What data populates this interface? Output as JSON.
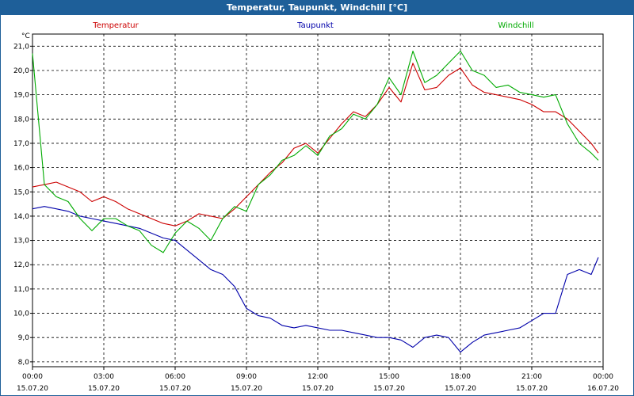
{
  "window": {
    "title": "Temperatur, Taupunkt, Windchill [°C]"
  },
  "chart_data": {
    "type": "line",
    "title": "Temperatur, Taupunkt, Windchill [°C]",
    "ylabel": "°C",
    "xlabel": "",
    "xlim": [
      0,
      24
    ],
    "ylim": [
      7.8,
      21.5
    ],
    "grid": true,
    "legend_position": "top",
    "y_ticks": [
      8.0,
      9.0,
      10.0,
      11.0,
      12.0,
      13.0,
      14.0,
      15.0,
      16.0,
      17.0,
      18.0,
      19.0,
      20.0,
      21.0
    ],
    "y_tick_labels": [
      "8,0",
      "9,0",
      "10,0",
      "11,0",
      "12,0",
      "13,0",
      "14,0",
      "15,0",
      "16,0",
      "17,0",
      "18,0",
      "19,0",
      "20,0",
      "21,0"
    ],
    "x_ticks": [
      {
        "x": 0,
        "time": "00:00",
        "date": "15.07.20"
      },
      {
        "x": 3,
        "time": "03:00",
        "date": "15.07.20"
      },
      {
        "x": 6,
        "time": "06:00",
        "date": "15.07.20"
      },
      {
        "x": 9,
        "time": "09:00",
        "date": "15.07.20"
      },
      {
        "x": 12,
        "time": "12:00",
        "date": "15.07.20"
      },
      {
        "x": 15,
        "time": "15:00",
        "date": "15.07.20"
      },
      {
        "x": 18,
        "time": "18:00",
        "date": "15.07.20"
      },
      {
        "x": 21,
        "time": "21:00",
        "date": "15.07.20"
      },
      {
        "x": 24,
        "time": "00:00",
        "date": "16.07.20"
      }
    ],
    "series": [
      {
        "name": "Temperatur",
        "color": "#cc0000",
        "x": [
          0,
          0.5,
          1,
          1.5,
          2,
          2.5,
          3,
          3.5,
          4,
          4.5,
          5,
          5.5,
          6,
          6.5,
          7,
          7.5,
          8,
          8.5,
          9,
          9.5,
          10,
          10.5,
          11,
          11.5,
          12,
          12.5,
          13,
          13.5,
          14,
          14.5,
          15,
          15.5,
          16,
          16.5,
          17,
          17.5,
          18,
          18.5,
          19,
          19.5,
          20,
          20.5,
          21,
          21.5,
          22,
          22.5,
          23,
          23.5,
          23.8
        ],
        "values": [
          15.2,
          15.3,
          15.4,
          15.2,
          15.0,
          14.6,
          14.8,
          14.6,
          14.3,
          14.1,
          13.9,
          13.7,
          13.6,
          13.8,
          14.1,
          14.0,
          13.9,
          14.3,
          14.8,
          15.3,
          15.8,
          16.2,
          16.8,
          17.0,
          16.6,
          17.2,
          17.8,
          18.3,
          18.1,
          18.6,
          19.3,
          18.7,
          20.3,
          19.2,
          19.3,
          19.8,
          20.1,
          19.4,
          19.1,
          19.0,
          18.9,
          18.8,
          18.6,
          18.3,
          18.3,
          18.0,
          17.5,
          17.0,
          16.6
        ]
      },
      {
        "name": "Taupunkt",
        "color": "#0000aa",
        "x": [
          0,
          0.5,
          1,
          1.5,
          2,
          2.5,
          3,
          3.5,
          4,
          4.5,
          5,
          5.5,
          6,
          6.5,
          7,
          7.5,
          8,
          8.5,
          9,
          9.5,
          10,
          10.5,
          11,
          11.5,
          12,
          12.5,
          13,
          13.5,
          14,
          14.5,
          15,
          15.5,
          16,
          16.5,
          17,
          17.5,
          18,
          18.5,
          19,
          19.5,
          20,
          20.5,
          21,
          21.5,
          22,
          22.5,
          23,
          23.5,
          23.8
        ],
        "values": [
          14.3,
          14.4,
          14.3,
          14.2,
          14.0,
          13.9,
          13.8,
          13.7,
          13.6,
          13.5,
          13.3,
          13.1,
          13.0,
          12.6,
          12.2,
          11.8,
          11.6,
          11.1,
          10.2,
          9.9,
          9.8,
          9.5,
          9.4,
          9.5,
          9.4,
          9.3,
          9.3,
          9.2,
          9.1,
          9.0,
          9.0,
          8.9,
          8.6,
          9.0,
          9.1,
          9.0,
          8.4,
          8.8,
          9.1,
          9.2,
          9.3,
          9.4,
          9.7,
          10.0,
          10.0,
          11.6,
          11.8,
          11.6,
          12.3
        ]
      },
      {
        "name": "Windchill",
        "color": "#00aa00",
        "x": [
          0,
          0.5,
          1,
          1.5,
          2,
          2.5,
          3,
          3.5,
          4,
          4.5,
          5,
          5.5,
          6,
          6.5,
          7,
          7.5,
          8,
          8.5,
          9,
          9.5,
          10,
          10.5,
          11,
          11.5,
          12,
          12.5,
          13,
          13.5,
          14,
          14.5,
          15,
          15.5,
          16,
          16.5,
          17,
          17.5,
          18,
          18.5,
          19,
          19.5,
          20,
          20.5,
          21,
          21.5,
          22,
          22.5,
          23,
          23.5,
          23.8
        ],
        "values": [
          20.7,
          15.3,
          14.8,
          14.6,
          13.9,
          13.4,
          13.9,
          13.9,
          13.6,
          13.4,
          12.8,
          12.5,
          13.3,
          13.8,
          13.5,
          13.0,
          13.9,
          14.4,
          14.2,
          15.3,
          15.7,
          16.3,
          16.5,
          16.9,
          16.5,
          17.3,
          17.6,
          18.2,
          18.0,
          18.6,
          19.7,
          19.0,
          20.8,
          19.5,
          19.8,
          20.3,
          20.8,
          20.0,
          19.8,
          19.3,
          19.4,
          19.1,
          19.0,
          18.9,
          19.0,
          17.8,
          17.0,
          16.6,
          16.3
        ]
      }
    ]
  }
}
